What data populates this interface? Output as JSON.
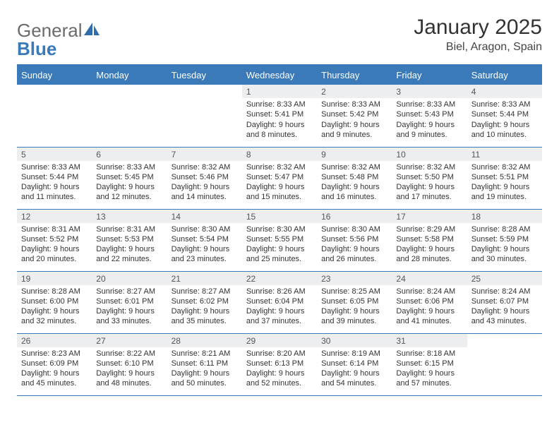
{
  "logo": {
    "text_general": "General",
    "text_blue": "Blue"
  },
  "title": "January 2025",
  "location": "Biel, Aragon, Spain",
  "colors": {
    "header_bg": "#3a7ab8",
    "header_text": "#ffffff",
    "daynum_bg": "#eceef0",
    "border": "#3a7ab8",
    "body_text": "#333333",
    "logo_general": "#6b6b6b",
    "logo_blue": "#3a7ab8",
    "page_bg": "#ffffff"
  },
  "typography": {
    "title_fontsize": 30,
    "location_fontsize": 16,
    "logo_fontsize": 26,
    "dayheader_fontsize": 13,
    "daynum_fontsize": 12,
    "daydata_fontsize": 11,
    "font_family": "Arial"
  },
  "day_headers": [
    "Sunday",
    "Monday",
    "Tuesday",
    "Wednesday",
    "Thursday",
    "Friday",
    "Saturday"
  ],
  "weeks": [
    [
      null,
      null,
      null,
      {
        "n": "1",
        "sunrise": "8:33 AM",
        "sunset": "5:41 PM",
        "daylight": "9 hours and 8 minutes."
      },
      {
        "n": "2",
        "sunrise": "8:33 AM",
        "sunset": "5:42 PM",
        "daylight": "9 hours and 9 minutes."
      },
      {
        "n": "3",
        "sunrise": "8:33 AM",
        "sunset": "5:43 PM",
        "daylight": "9 hours and 9 minutes."
      },
      {
        "n": "4",
        "sunrise": "8:33 AM",
        "sunset": "5:44 PM",
        "daylight": "9 hours and 10 minutes."
      }
    ],
    [
      {
        "n": "5",
        "sunrise": "8:33 AM",
        "sunset": "5:44 PM",
        "daylight": "9 hours and 11 minutes."
      },
      {
        "n": "6",
        "sunrise": "8:33 AM",
        "sunset": "5:45 PM",
        "daylight": "9 hours and 12 minutes."
      },
      {
        "n": "7",
        "sunrise": "8:32 AM",
        "sunset": "5:46 PM",
        "daylight": "9 hours and 14 minutes."
      },
      {
        "n": "8",
        "sunrise": "8:32 AM",
        "sunset": "5:47 PM",
        "daylight": "9 hours and 15 minutes."
      },
      {
        "n": "9",
        "sunrise": "8:32 AM",
        "sunset": "5:48 PM",
        "daylight": "9 hours and 16 minutes."
      },
      {
        "n": "10",
        "sunrise": "8:32 AM",
        "sunset": "5:50 PM",
        "daylight": "9 hours and 17 minutes."
      },
      {
        "n": "11",
        "sunrise": "8:32 AM",
        "sunset": "5:51 PM",
        "daylight": "9 hours and 19 minutes."
      }
    ],
    [
      {
        "n": "12",
        "sunrise": "8:31 AM",
        "sunset": "5:52 PM",
        "daylight": "9 hours and 20 minutes."
      },
      {
        "n": "13",
        "sunrise": "8:31 AM",
        "sunset": "5:53 PM",
        "daylight": "9 hours and 22 minutes."
      },
      {
        "n": "14",
        "sunrise": "8:30 AM",
        "sunset": "5:54 PM",
        "daylight": "9 hours and 23 minutes."
      },
      {
        "n": "15",
        "sunrise": "8:30 AM",
        "sunset": "5:55 PM",
        "daylight": "9 hours and 25 minutes."
      },
      {
        "n": "16",
        "sunrise": "8:30 AM",
        "sunset": "5:56 PM",
        "daylight": "9 hours and 26 minutes."
      },
      {
        "n": "17",
        "sunrise": "8:29 AM",
        "sunset": "5:58 PM",
        "daylight": "9 hours and 28 minutes."
      },
      {
        "n": "18",
        "sunrise": "8:28 AM",
        "sunset": "5:59 PM",
        "daylight": "9 hours and 30 minutes."
      }
    ],
    [
      {
        "n": "19",
        "sunrise": "8:28 AM",
        "sunset": "6:00 PM",
        "daylight": "9 hours and 32 minutes."
      },
      {
        "n": "20",
        "sunrise": "8:27 AM",
        "sunset": "6:01 PM",
        "daylight": "9 hours and 33 minutes."
      },
      {
        "n": "21",
        "sunrise": "8:27 AM",
        "sunset": "6:02 PM",
        "daylight": "9 hours and 35 minutes."
      },
      {
        "n": "22",
        "sunrise": "8:26 AM",
        "sunset": "6:04 PM",
        "daylight": "9 hours and 37 minutes."
      },
      {
        "n": "23",
        "sunrise": "8:25 AM",
        "sunset": "6:05 PM",
        "daylight": "9 hours and 39 minutes."
      },
      {
        "n": "24",
        "sunrise": "8:24 AM",
        "sunset": "6:06 PM",
        "daylight": "9 hours and 41 minutes."
      },
      {
        "n": "25",
        "sunrise": "8:24 AM",
        "sunset": "6:07 PM",
        "daylight": "9 hours and 43 minutes."
      }
    ],
    [
      {
        "n": "26",
        "sunrise": "8:23 AM",
        "sunset": "6:09 PM",
        "daylight": "9 hours and 45 minutes."
      },
      {
        "n": "27",
        "sunrise": "8:22 AM",
        "sunset": "6:10 PM",
        "daylight": "9 hours and 48 minutes."
      },
      {
        "n": "28",
        "sunrise": "8:21 AM",
        "sunset": "6:11 PM",
        "daylight": "9 hours and 50 minutes."
      },
      {
        "n": "29",
        "sunrise": "8:20 AM",
        "sunset": "6:13 PM",
        "daylight": "9 hours and 52 minutes."
      },
      {
        "n": "30",
        "sunrise": "8:19 AM",
        "sunset": "6:14 PM",
        "daylight": "9 hours and 54 minutes."
      },
      {
        "n": "31",
        "sunrise": "8:18 AM",
        "sunset": "6:15 PM",
        "daylight": "9 hours and 57 minutes."
      },
      null
    ]
  ],
  "labels": {
    "sunrise": "Sunrise:",
    "sunset": "Sunset:",
    "daylight": "Daylight:"
  }
}
